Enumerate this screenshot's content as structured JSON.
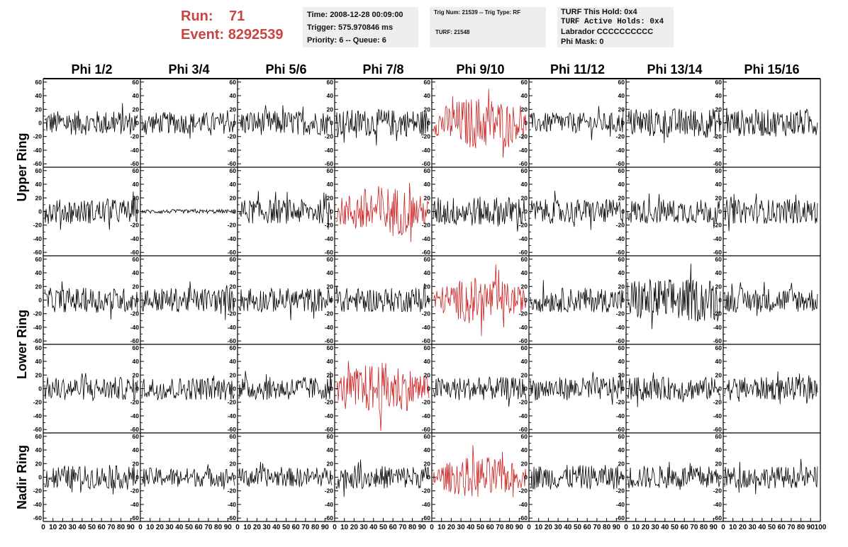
{
  "header": {
    "run_label": "Run:",
    "run_value": "71",
    "event_label": "Event:",
    "event_value": "8292539",
    "time": "Time: 2008-12-28 00:09:00",
    "trigger": "Trigger: 575.970846 ms",
    "priority": "Priority: 6 -- Queue: 6",
    "trig_num": "Trig Num: 21539 -- Trig Type: RF",
    "turf": "TURF: 21548",
    "turf_hold": "TURF This Hold: 0x4",
    "turf_active": "TURF Active Holds: 0x4",
    "labrador": "Labrador CCCCCCCCCC",
    "phi_mask": "Phi Mask: 0"
  },
  "chart_data": {
    "type": "line",
    "columns": [
      "Phi 1/2",
      "Phi 3/4",
      "Phi 5/6",
      "Phi 7/8",
      "Phi 9/10",
      "Phi 11/12",
      "Phi 13/14",
      "Phi 15/16"
    ],
    "row_groups": [
      "Upper Ring",
      "Lower Ring",
      "Nadir Ring"
    ],
    "rows": 5,
    "ylim": [
      -65,
      65
    ],
    "yticks": [
      -60,
      -40,
      -20,
      0,
      20,
      40,
      60
    ],
    "xlim": [
      0,
      100
    ],
    "xtick_labels": [
      "0",
      "10",
      "20",
      "30",
      "40",
      "50",
      "60",
      "70",
      "80",
      "90",
      "100"
    ],
    "trace_color": "#000000",
    "highlight_color": "#cc2222",
    "highlighted_panels": [
      [
        0,
        4
      ],
      [
        1,
        3
      ],
      [
        2,
        4
      ],
      [
        3,
        3
      ],
      [
        4,
        4
      ]
    ],
    "amplitudes": [
      [
        18,
        16,
        18,
        20,
        28,
        15,
        22,
        20
      ],
      [
        18,
        3,
        18,
        28,
        22,
        18,
        18,
        18
      ],
      [
        18,
        18,
        18,
        18,
        24,
        18,
        32,
        18
      ],
      [
        17,
        17,
        17,
        28,
        17,
        17,
        17,
        17
      ],
      [
        17,
        14,
        14,
        17,
        22,
        18,
        17,
        16
      ]
    ]
  }
}
